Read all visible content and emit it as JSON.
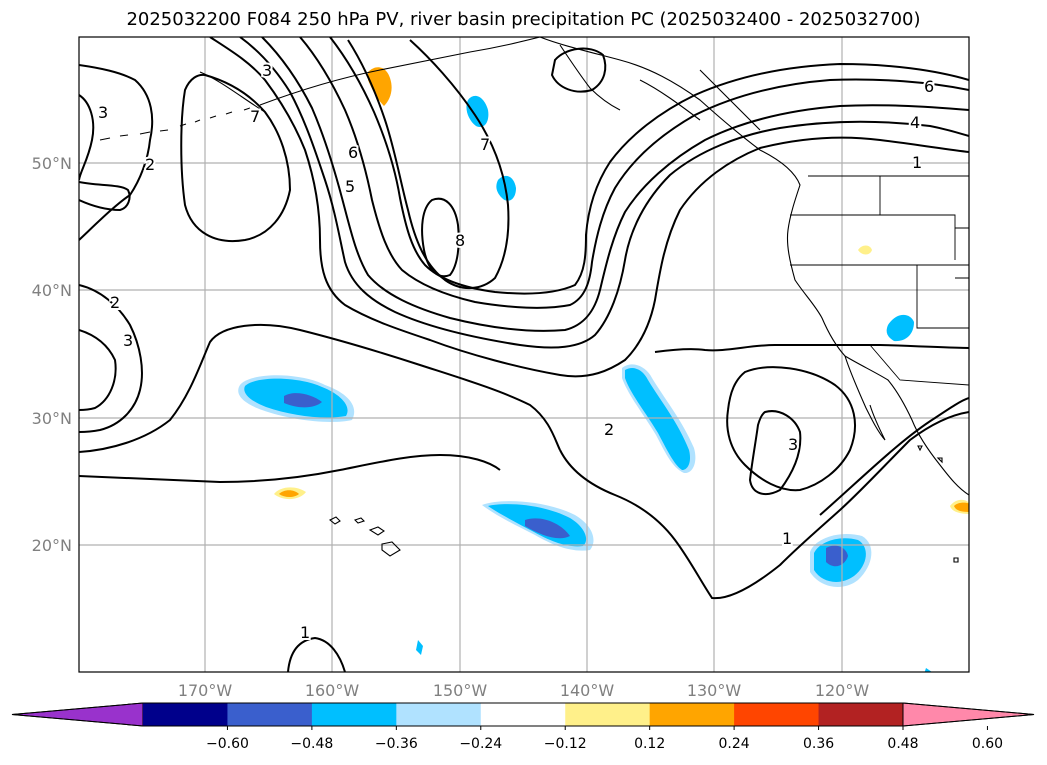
{
  "title": "2025032200 F084 250 hPa PV, river basin precipitation PC (2025032400 - 2025032700)",
  "lat_labels": [
    "50°N",
    "40°N",
    "30°N",
    "20°N"
  ],
  "lon_labels": [
    "170°W",
    "160°W",
    "150°W",
    "140°W",
    "130°W",
    "120°W"
  ],
  "contour_labels": [
    "3",
    "3",
    "7",
    "6",
    "5",
    "2",
    "7",
    "8",
    "2",
    "3",
    "2",
    "3",
    "1",
    "6",
    "4",
    "1",
    "1"
  ],
  "colorbar": {
    "ticks": [
      "−0.60",
      "−0.48",
      "−0.36",
      "−0.24",
      "−0.12",
      "0.12",
      "0.24",
      "0.36",
      "0.48",
      "0.60"
    ],
    "colors": [
      "#9932cc",
      "#00008b",
      "#3a5fcd",
      "#00bfff",
      "#b0e2ff",
      "#ffffff",
      "#fff08a",
      "#ffa500",
      "#ff4500",
      "#b22222",
      "#ff88aa"
    ]
  },
  "colors": {
    "strong_negative": "#3a5fcd",
    "negative": "#00bfff",
    "weak_negative": "#b0e2ff",
    "weak_positive": "#fff08a",
    "positive": "#ffa500"
  }
}
